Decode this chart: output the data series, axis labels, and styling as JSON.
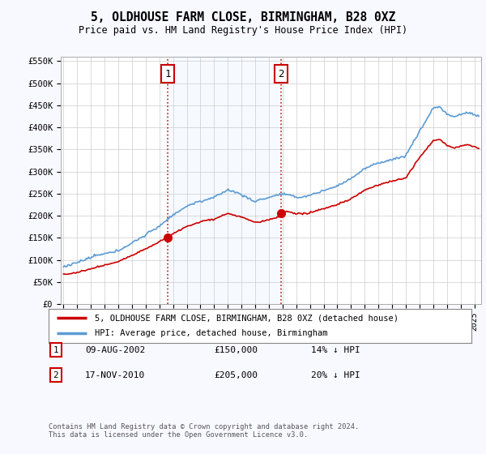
{
  "title": "5, OLDHOUSE FARM CLOSE, BIRMINGHAM, B28 0XZ",
  "subtitle": "Price paid vs. HM Land Registry's House Price Index (HPI)",
  "ylabel_ticks": [
    "£0",
    "£50K",
    "£100K",
    "£150K",
    "£200K",
    "£250K",
    "£300K",
    "£350K",
    "£400K",
    "£450K",
    "£500K",
    "£550K"
  ],
  "ytick_vals": [
    0,
    50000,
    100000,
    150000,
    200000,
    250000,
    300000,
    350000,
    400000,
    450000,
    500000,
    550000
  ],
  "ylim": [
    0,
    560000
  ],
  "xlim_start": 1994.8,
  "xlim_end": 2025.5,
  "hpi_color": "#5b9bd5",
  "price_color": "#cc0000",
  "vline_color": "#cc0000",
  "shade_color": "#ddeeff",
  "transaction1_year": 2002.6,
  "transaction1_price": 150000,
  "transaction1_label": "1",
  "transaction2_year": 2010.88,
  "transaction2_price": 205000,
  "transaction2_label": "2",
  "legend_line1": "5, OLDHOUSE FARM CLOSE, BIRMINGHAM, B28 0XZ (detached house)",
  "legend_line2": "HPI: Average price, detached house, Birmingham",
  "table_row1": [
    "1",
    "09-AUG-2002",
    "£150,000",
    "14% ↓ HPI"
  ],
  "table_row2": [
    "2",
    "17-NOV-2010",
    "£205,000",
    "20% ↓ HPI"
  ],
  "footnote": "Contains HM Land Registry data © Crown copyright and database right 2024.\nThis data is licensed under the Open Government Licence v3.0.",
  "background_color": "#f8f8ff",
  "plot_bg_color": "#ffffff",
  "grid_color": "#cccccc"
}
